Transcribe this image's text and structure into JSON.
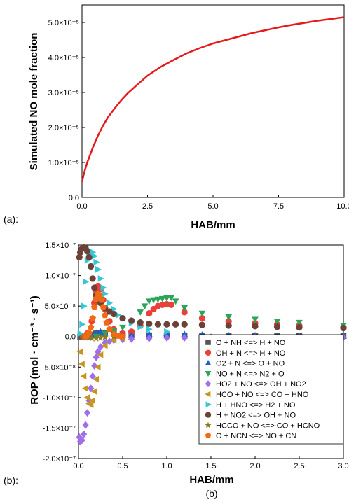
{
  "panel_labels": {
    "a": "(a):",
    "b": "(b):",
    "caption": "(b)"
  },
  "chart_data": [
    {
      "type": "line",
      "xlabel": "HAB/mm",
      "ylabel": "Simulated NO mole fraction",
      "xlim": [
        0,
        10
      ],
      "ylim": [
        0,
        5.5e-05
      ],
      "xticks": [
        0,
        2.5,
        5,
        7.5,
        10
      ],
      "xtick_labels": [
        "0.0",
        "2.5",
        "5.0",
        "7.5",
        "10.0"
      ],
      "yticks": [
        0,
        1e-05,
        2e-05,
        3e-05,
        4e-05,
        5e-05
      ],
      "ytick_labels": [
        "0.0",
        "1.0×10⁻⁵",
        "2.0×10⁻⁵",
        "3.0×10⁻⁵",
        "4.0×10⁻⁵",
        "5.0×10⁻⁵"
      ],
      "colors": {
        "line": "#e41a1c"
      },
      "series": [
        {
          "x": [
            0,
            0.1,
            0.2,
            0.4,
            0.6,
            0.8,
            1.0,
            1.25,
            1.5,
            1.75,
            2.0,
            2.5,
            3.0,
            3.5,
            4.0,
            4.5,
            5.0,
            5.5,
            6.0,
            6.5,
            7.0,
            7.5,
            8.0,
            8.5,
            9.0,
            9.5,
            10.0
          ],
          "y": [
            4.5e-06,
            7.5e-06,
            1e-05,
            1.4e-05,
            1.75e-05,
            2.05e-05,
            2.3e-05,
            2.55e-05,
            2.78e-05,
            2.98e-05,
            3.15e-05,
            3.48e-05,
            3.73e-05,
            3.93e-05,
            4.12e-05,
            4.27e-05,
            4.4e-05,
            4.5e-05,
            4.6e-05,
            4.7e-05,
            4.78e-05,
            4.86e-05,
            4.93e-05,
            4.99e-05,
            5.05e-05,
            5.1e-05,
            5.15e-05
          ]
        }
      ]
    },
    {
      "type": "scatter",
      "xlabel": "HAB/mm",
      "ylabel": "ROP (mol · cm⁻³ · s⁻¹)",
      "xlim": [
        0,
        3.0
      ],
      "ylim": [
        -2e-07,
        1.5e-07
      ],
      "xticks": [
        0,
        0.5,
        1.0,
        1.5,
        2.0,
        2.5,
        3.0
      ],
      "xtick_labels": [
        "0.0",
        "0.5",
        "1.0",
        "1.5",
        "2.0",
        "2.5",
        "3.0"
      ],
      "yticks": [
        -2e-07,
        -1.5e-07,
        -1e-07,
        -5e-08,
        0,
        5e-08,
        1e-07,
        1.5e-07
      ],
      "ytick_labels": [
        "-2.0×10⁻⁷",
        "-1.5×10⁻⁷",
        "-1.0×10⁻⁷",
        "-5.0×10⁻⁸",
        "0.0",
        "5.0×10⁻⁸",
        "1.0×10⁻⁷",
        "1.5×10⁻⁷"
      ],
      "legend_position": "bottom-right",
      "series": [
        {
          "name": "O + NH <=> H + NO",
          "marker": "square",
          "color": "#555555",
          "x": [
            0.02,
            0.05,
            0.08,
            0.1,
            0.15,
            0.2,
            0.25,
            0.3,
            0.4,
            0.5,
            0.6,
            0.8,
            1.0,
            1.2,
            1.4,
            1.7,
            2.0,
            2.25,
            2.5,
            3.0
          ],
          "y": [
            0,
            0,
            0,
            1e-09,
            3e-09,
            5e-09,
            6e-09,
            6e-09,
            5e-09,
            4e-09,
            3e-09,
            2e-09,
            2e-09,
            1e-09,
            1e-09,
            1e-09,
            1e-09,
            1e-09,
            1e-09,
            1e-09
          ]
        },
        {
          "name": "OH + N <=> H + NO",
          "marker": "circle",
          "color": "#e8413c",
          "x": [
            0.05,
            0.1,
            0.15,
            0.18,
            0.2,
            0.22,
            0.25,
            0.28,
            0.3,
            0.35,
            0.4,
            0.5,
            0.6,
            0.7,
            0.8,
            0.85,
            0.9,
            0.95,
            1.0,
            1.05,
            1.2,
            1.4,
            1.7,
            2.0,
            2.25,
            2.5,
            3.0
          ],
          "y": [
            0,
            5e-09,
            2.5e-08,
            5.5e-08,
            7.5e-08,
            8.3e-08,
            7.8e-08,
            6e-08,
            4.5e-08,
            2.5e-08,
            1.2e-08,
            5e-09,
            8e-09,
            1.8e-08,
            3.8e-08,
            4.5e-08,
            5e-08,
            5.2e-08,
            5.3e-08,
            5.2e-08,
            4e-08,
            3e-08,
            2.5e-08,
            2.2e-08,
            2e-08,
            1.8e-08,
            1.5e-08
          ]
        },
        {
          "name": "O2 + N <=> O + NO",
          "marker": "triangle-up",
          "color": "#1f5fcf",
          "x": [
            0.1,
            0.15,
            0.2,
            0.25,
            0.3,
            0.4,
            0.5,
            0.6,
            0.8,
            1.0,
            1.2,
            1.4,
            1.7,
            2.0,
            2.5,
            3.0
          ],
          "y": [
            0,
            2e-09,
            6e-09,
            8e-09,
            6e-09,
            3e-09,
            2e-09,
            2e-09,
            4e-09,
            5e-09,
            4e-09,
            3e-09,
            2e-09,
            2e-09,
            1e-09,
            1e-09
          ]
        },
        {
          "name": "NO + N <=> N2 + O",
          "marker": "triangle-down",
          "color": "#2aa55a",
          "x": [
            0.1,
            0.2,
            0.3,
            0.4,
            0.5,
            0.6,
            0.7,
            0.75,
            0.8,
            0.85,
            0.9,
            0.95,
            1.0,
            1.05,
            1.1,
            1.2,
            1.4,
            1.7,
            2.0,
            2.25,
            2.5,
            3.0
          ],
          "y": [
            -1e-09,
            0,
            5e-09,
            1e-08,
            1.5e-08,
            2.5e-08,
            4e-08,
            5e-08,
            5.8e-08,
            6e-08,
            6.1e-08,
            6.2e-08,
            6.3e-08,
            6.4e-08,
            5.8e-08,
            4.7e-08,
            3.8e-08,
            3.2e-08,
            2.8e-08,
            2.5e-08,
            2.3e-08,
            1.8e-08
          ]
        },
        {
          "name": "HO2 + NO <=> OH + NO2",
          "marker": "diamond",
          "color": "#a06ee8",
          "x": [
            0.01,
            0.02,
            0.04,
            0.06,
            0.08,
            0.1,
            0.12,
            0.14,
            0.16,
            0.18,
            0.2,
            0.22,
            0.25,
            0.3,
            0.35,
            0.4,
            0.5,
            0.6,
            0.8,
            1.0,
            1.2,
            1.5,
            2.0,
            2.5,
            3.0
          ],
          "y": [
            -1.65e-07,
            -1.72e-07,
            -1.7e-07,
            -1.6e-07,
            -1.45e-07,
            -1.25e-07,
            -1.05e-07,
            -8.5e-08,
            -6.5e-08,
            -4.8e-08,
            -3.4e-08,
            -2.5e-08,
            -1.7e-08,
            -1e-08,
            -8e-09,
            -6e-09,
            -5e-09,
            -4e-09,
            -3e-09,
            -2e-09,
            -2e-09,
            -1e-09,
            -1e-09,
            -1e-09,
            -1e-09
          ]
        },
        {
          "name": "HCO + NO <=> CO + HNO",
          "marker": "triangle-left",
          "color": "#c8961e",
          "x": [
            0.02,
            0.04,
            0.06,
            0.08,
            0.1,
            0.12,
            0.14,
            0.16,
            0.18,
            0.2,
            0.22,
            0.25,
            0.3,
            0.4,
            0.5
          ],
          "y": [
            -2.5e-08,
            -4.5e-08,
            -6.5e-08,
            -8.5e-08,
            -1e-07,
            -1.1e-07,
            -1.12e-07,
            -1.05e-07,
            -9e-08,
            -7e-08,
            -5e-08,
            -3e-08,
            -1.5e-08,
            -6e-09,
            -3e-09
          ]
        },
        {
          "name": "H + HNO <=> H2 + NO",
          "marker": "triangle-right",
          "color": "#35c7d3",
          "x": [
            0.02,
            0.04,
            0.06,
            0.08,
            0.1,
            0.12,
            0.14,
            0.16,
            0.18,
            0.2,
            0.22,
            0.25,
            0.28,
            0.3,
            0.35,
            0.4,
            0.45,
            0.5,
            0.6,
            0.7,
            0.8,
            1.0
          ],
          "y": [
            5e-09,
            2e-08,
            5e-08,
            9e-08,
            1.25e-07,
            1.38e-07,
            1.4e-07,
            1.38e-07,
            1.32e-07,
            1.22e-07,
            1.1e-07,
            9.5e-08,
            8e-08,
            7e-08,
            5.5e-08,
            4.5e-08,
            3.5e-08,
            3e-08,
            2.2e-08,
            1.6e-08,
            1.2e-08,
            8e-09
          ]
        },
        {
          "name": "H + NO2 <=> OH + NO",
          "marker": "circle",
          "color": "#6b4238",
          "x": [
            0.01,
            0.02,
            0.04,
            0.06,
            0.08,
            0.1,
            0.12,
            0.14,
            0.16,
            0.18,
            0.2,
            0.25,
            0.3,
            0.35,
            0.4,
            0.5,
            0.6,
            0.7,
            0.8,
            0.9,
            1.0,
            1.1,
            1.2,
            1.4,
            1.7,
            2.0,
            2.25,
            2.5,
            3.0
          ],
          "y": [
            1.3e-07,
            1.38e-07,
            1.44e-07,
            1.46e-07,
            1.45e-07,
            1.4e-07,
            1.3e-07,
            1.15e-07,
            9.5e-08,
            8e-08,
            6.8e-08,
            5.5e-08,
            4.7e-08,
            4.1e-08,
            3.7e-08,
            3e-08,
            2.6e-08,
            2.3e-08,
            2.1e-08,
            2e-08,
            2e-08,
            2e-08,
            2e-08,
            1.9e-08,
            1.8e-08,
            1.7e-08,
            1.6e-08,
            1.5e-08,
            1.4e-08
          ]
        },
        {
          "name": "HCCO + NO <=> CO + HCNO",
          "marker": "star",
          "color": "#8a7a1a",
          "x": [
            0.05,
            0.1,
            0.15,
            0.2,
            0.25,
            0.3,
            0.4
          ],
          "y": [
            0,
            -1e-09,
            -3e-09,
            -3e-09,
            -2e-09,
            -1e-09,
            0
          ]
        },
        {
          "name": "O + NCN <=> NO + CN",
          "marker": "pentagon",
          "color": "#f06a14",
          "x": [
            0.08,
            0.1,
            0.12,
            0.14,
            0.16,
            0.18,
            0.2,
            0.22,
            0.24,
            0.26,
            0.28,
            0.3,
            0.32,
            0.35,
            0.4,
            0.45,
            0.5
          ],
          "y": [
            0,
            2e-09,
            6e-09,
            1.5e-08,
            3e-08,
            4.8e-08,
            6.2e-08,
            7e-08,
            6.8e-08,
            6e-08,
            4.8e-08,
            3.5e-08,
            2.3e-08,
            1.2e-08,
            4e-09,
            1e-09,
            0
          ]
        }
      ]
    }
  ]
}
